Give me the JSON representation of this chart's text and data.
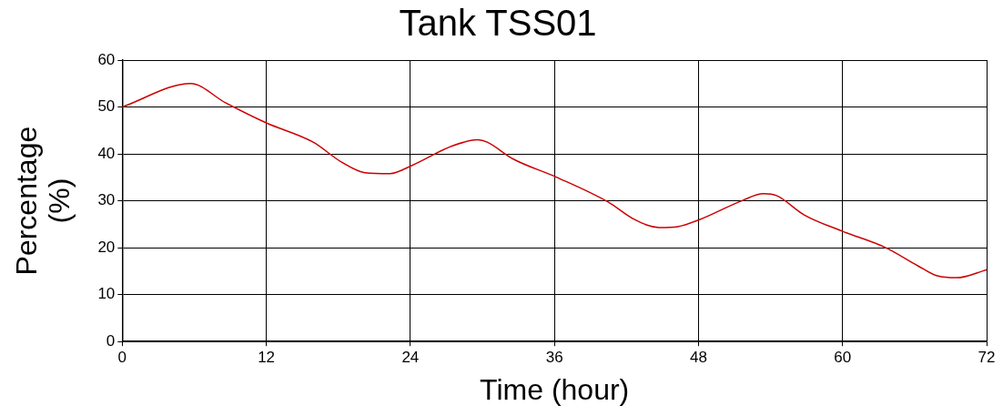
{
  "chart_data": {
    "type": "line",
    "title": "Tank TSS01",
    "xlabel": "Time (hour)",
    "ylabel": "Percentage (%)",
    "xlim": [
      0,
      72
    ],
    "xticks": [
      0,
      12,
      24,
      36,
      48,
      60,
      72
    ],
    "ylim": [
      0,
      60
    ],
    "yticks": [
      0,
      10,
      20,
      30,
      40,
      50,
      60
    ],
    "grid": true,
    "legend": false,
    "marker": "none",
    "line_style": "solid",
    "series": [
      {
        "color": "#cc0000",
        "x": [
          0,
          5.7,
          8.6,
          12,
          15.9,
          18.3,
          20.2,
          22.3,
          24.1,
          27.5,
          29.6,
          30.4,
          32.5,
          36.2,
          40.5,
          42.6,
          44.7,
          46.3,
          48,
          51.6,
          53.4,
          54.5,
          56.8,
          60,
          63.6,
          66.3,
          67.9,
          69.5,
          72
        ],
        "values": [
          50,
          55,
          50.9,
          46.6,
          42.5,
          38.2,
          36,
          35.8,
          37.5,
          41.7,
          43,
          42.5,
          39,
          35,
          29.7,
          26.1,
          24.3,
          24.5,
          25.9,
          30,
          31.5,
          31.1,
          27,
          23.5,
          20,
          16.1,
          14,
          13.6,
          15.3
        ]
      }
    ]
  }
}
